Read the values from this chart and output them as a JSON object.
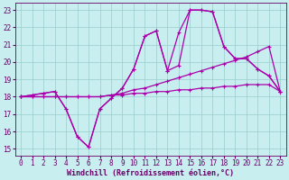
{
  "xlabel": "Windchill (Refroidissement éolien,°C)",
  "bg_color": "#c8eef0",
  "line_color": "#aa00aa",
  "grid_color": "#99cccc",
  "xlim_min": -0.5,
  "xlim_max": 23.5,
  "ylim_min": 14.6,
  "ylim_max": 23.4,
  "xticks": [
    0,
    1,
    2,
    3,
    4,
    5,
    6,
    7,
    8,
    9,
    10,
    11,
    12,
    13,
    14,
    15,
    16,
    17,
    18,
    19,
    20,
    21,
    22,
    23
  ],
  "yticks": [
    15,
    16,
    17,
    18,
    19,
    20,
    21,
    22,
    23
  ],
  "xlabel_fontsize": 6.0,
  "tick_fontsize": 5.5,
  "marker_size": 2.5,
  "linewidth": 0.9,
  "line1_x": [
    0,
    1,
    2,
    3,
    4,
    5,
    6,
    7,
    8,
    9,
    10,
    11,
    12,
    13,
    14,
    15,
    16,
    17,
    18,
    19,
    20,
    21,
    22,
    23
  ],
  "line1_y": [
    18.0,
    18.0,
    18.0,
    18.0,
    18.0,
    18.0,
    18.0,
    18.0,
    18.1,
    18.1,
    18.2,
    18.2,
    18.3,
    18.3,
    18.4,
    18.4,
    18.5,
    18.5,
    18.6,
    18.6,
    18.7,
    18.7,
    18.7,
    18.3
  ],
  "line2_x": [
    0,
    1,
    2,
    3,
    4,
    5,
    6,
    7,
    8,
    9,
    10,
    11,
    12,
    13,
    14,
    15,
    16,
    17,
    18,
    19,
    20,
    21,
    22,
    23
  ],
  "line2_y": [
    18.0,
    18.0,
    18.0,
    18.0,
    18.0,
    18.0,
    18.0,
    18.0,
    18.1,
    18.2,
    18.4,
    18.5,
    18.7,
    18.9,
    19.1,
    19.3,
    19.5,
    19.7,
    19.9,
    20.1,
    20.3,
    20.6,
    20.9,
    18.3
  ],
  "line3_x": [
    0,
    1,
    2,
    3,
    4,
    5,
    6,
    7,
    8,
    9,
    10,
    11,
    12,
    13,
    14,
    15,
    16,
    17,
    18,
    19,
    20,
    21,
    22,
    23
  ],
  "line3_y": [
    18.0,
    18.1,
    18.2,
    18.3,
    17.3,
    15.7,
    15.1,
    17.3,
    17.9,
    18.5,
    19.6,
    21.5,
    21.8,
    19.5,
    19.8,
    23.0,
    23.0,
    22.9,
    20.9,
    20.2,
    20.2,
    19.6,
    19.2,
    18.3
  ],
  "line4_x": [
    0,
    1,
    2,
    3,
    4,
    5,
    6,
    7,
    8,
    9,
    10,
    11,
    12,
    13,
    14,
    15,
    16,
    17,
    18,
    19,
    20,
    21,
    22,
    23
  ],
  "line4_y": [
    18.0,
    18.1,
    18.2,
    18.3,
    17.3,
    15.7,
    15.1,
    17.3,
    17.9,
    18.5,
    19.6,
    21.5,
    21.8,
    19.5,
    21.7,
    23.0,
    23.0,
    22.9,
    20.9,
    20.2,
    20.2,
    19.6,
    19.2,
    18.3
  ]
}
